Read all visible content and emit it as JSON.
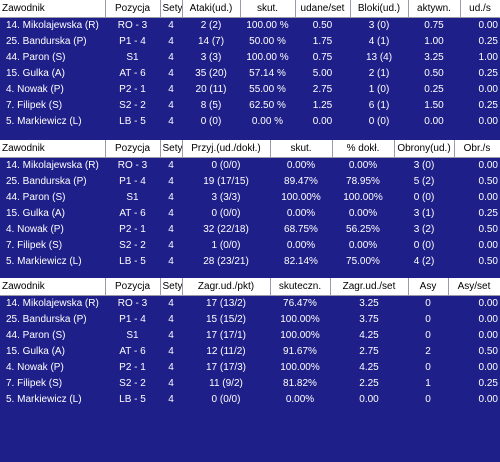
{
  "table1": {
    "headers": [
      "Zawodnik",
      "Pozycja",
      "Sety",
      "Ataki(ud.)",
      "skut.",
      "udane/set",
      "Bloki(ud.)",
      "aktywn.",
      "ud./s"
    ],
    "rows": [
      [
        "14. Mikolajewska (R)",
        "RO - 3",
        "4",
        "2 (2)",
        "100.00 %",
        "0.50",
        "3 (0)",
        "0.75",
        "0.00"
      ],
      [
        "25. Bandurska (P)",
        "P1 - 4",
        "4",
        "14 (7)",
        "50.00 %",
        "1.75",
        "4 (1)",
        "1.00",
        "0.25"
      ],
      [
        "44. Paron (S)",
        "S1",
        "4",
        "3 (3)",
        "100.00 %",
        "0.75",
        "13 (4)",
        "3.25",
        "1.00"
      ],
      [
        "15. Gulka (A)",
        "AT - 6",
        "4",
        "35 (20)",
        "57.14 %",
        "5.00",
        "2 (1)",
        "0.50",
        "0.25"
      ],
      [
        "4. Nowak (P)",
        "P2 - 1",
        "4",
        "20 (11)",
        "55.00 %",
        "2.75",
        "1 (0)",
        "0.25",
        "0.00"
      ],
      [
        "7. Filipek (S)",
        "S2 - 2",
        "4",
        "8 (5)",
        "62.50 %",
        "1.25",
        "6 (1)",
        "1.50",
        "0.25"
      ],
      [
        "5. Markiewicz (L)",
        "LB - 5",
        "4",
        "0 (0)",
        "0.00 %",
        "0.00",
        "0 (0)",
        "0.00",
        "0.00"
      ]
    ]
  },
  "table2": {
    "headers": [
      "Zawodnik",
      "Pozycja",
      "Sety",
      "Przyj.(ud./dokł.)",
      "skut.",
      "% dokł.",
      "Obrony(ud.)",
      "Obr./s"
    ],
    "rows": [
      [
        "14. Mikolajewska (R)",
        "RO - 3",
        "4",
        "0 (0/0)",
        "0.00%",
        "0.00%",
        "3 (0)",
        "0.00"
      ],
      [
        "25. Bandurska (P)",
        "P1 - 4",
        "4",
        "19 (17/15)",
        "89.47%",
        "78.95%",
        "5 (2)",
        "0.50"
      ],
      [
        "44. Paron (S)",
        "S1",
        "4",
        "3 (3/3)",
        "100.00%",
        "100.00%",
        "0 (0)",
        "0.00"
      ],
      [
        "15. Gulka (A)",
        "AT - 6",
        "4",
        "0 (0/0)",
        "0.00%",
        "0.00%",
        "3 (1)",
        "0.25"
      ],
      [
        "4. Nowak (P)",
        "P2 - 1",
        "4",
        "32 (22/18)",
        "68.75%",
        "56.25%",
        "3 (2)",
        "0.50"
      ],
      [
        "7. Filipek (S)",
        "S2 - 2",
        "4",
        "1 (0/0)",
        "0.00%",
        "0.00%",
        "0 (0)",
        "0.00"
      ],
      [
        "5. Markiewicz (L)",
        "LB - 5",
        "4",
        "28 (23/21)",
        "82.14%",
        "75.00%",
        "4 (2)",
        "0.50"
      ]
    ]
  },
  "table3": {
    "headers": [
      "Zawodnik",
      "Pozycja",
      "Sety",
      "Zagr.ud./pkt)",
      "skuteczn.",
      "Zagr.ud./set",
      "Asy",
      "Asy/set"
    ],
    "rows": [
      [
        "14. Mikolajewska (R)",
        "RO - 3",
        "4",
        "17 (13/2)",
        "76.47%",
        "3.25",
        "0",
        "0.00"
      ],
      [
        "25. Bandurska (P)",
        "P1 - 4",
        "4",
        "15 (15/2)",
        "100.00%",
        "3.75",
        "0",
        "0.00"
      ],
      [
        "44. Paron (S)",
        "S1",
        "4",
        "17 (17/1)",
        "100.00%",
        "4.25",
        "0",
        "0.00"
      ],
      [
        "15. Gulka (A)",
        "AT - 6",
        "4",
        "12 (11/2)",
        "91.67%",
        "2.75",
        "2",
        "0.50"
      ],
      [
        "4. Nowak (P)",
        "P2 - 1",
        "4",
        "17 (17/3)",
        "100.00%",
        "4.25",
        "0",
        "0.00"
      ],
      [
        "7. Filipek (S)",
        "S2 - 2",
        "4",
        "11 (9/2)",
        "81.82%",
        "2.25",
        "1",
        "0.25"
      ],
      [
        "5. Markiewicz (L)",
        "LB - 5",
        "4",
        "0 (0/0)",
        "0.00%",
        "0.00",
        "0",
        "0.00"
      ]
    ]
  }
}
